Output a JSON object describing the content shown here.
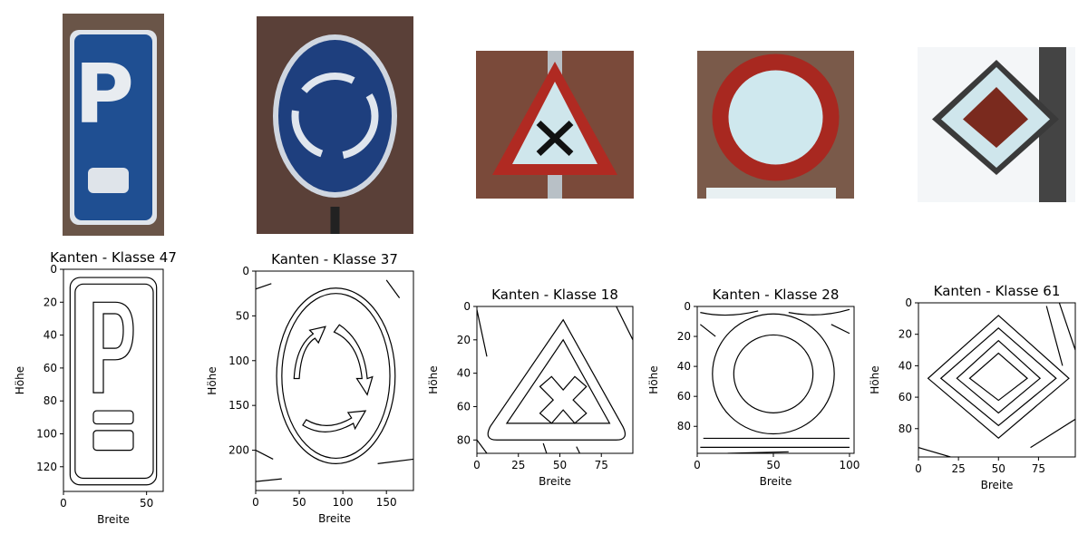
{
  "figure": {
    "background": "#ffffff"
  },
  "chart_data": [
    {
      "type": "image",
      "title": "Kanten - Klasse 47",
      "xlabel": "Breite",
      "ylabel": "Höhe",
      "width": 60,
      "height": 135,
      "xticks": [
        0,
        50
      ],
      "yticks": [
        0,
        20,
        40,
        60,
        80,
        100,
        120
      ],
      "photo": {
        "sign": "parking",
        "bg": "#6a5548",
        "accent": "#1f4f92"
      }
    },
    {
      "type": "image",
      "title": "Kanten - Klasse 37",
      "xlabel": "Breite",
      "ylabel": "Höhe",
      "width": 181,
      "height": 245,
      "xticks": [
        0,
        50,
        100,
        150
      ],
      "yticks": [
        0,
        50,
        100,
        150,
        200
      ],
      "photo": {
        "sign": "roundabout",
        "bg": "#5a4038",
        "accent": "#1e3f7e"
      }
    },
    {
      "type": "image",
      "title": "Kanten - Klasse 18",
      "xlabel": "Breite",
      "ylabel": "Höhe",
      "width": 94,
      "height": 88,
      "xticks": [
        0,
        25,
        50,
        75
      ],
      "yticks": [
        0,
        20,
        40,
        60,
        80
      ],
      "photo": {
        "sign": "crossroads",
        "bg": "#7a4a3a",
        "accent": "#b02a22"
      }
    },
    {
      "type": "image",
      "title": "Kanten - Klasse 28",
      "xlabel": "Breite",
      "ylabel": "Höhe",
      "width": 103,
      "height": 98,
      "xticks": [
        0,
        50,
        100
      ],
      "yticks": [
        0,
        20,
        40,
        60,
        80
      ],
      "photo": {
        "sign": "no-entry",
        "bg": "#7a5a4a",
        "accent": "#a82820"
      }
    },
    {
      "type": "image",
      "title": "Kanten - Klasse 61",
      "xlabel": "Breite",
      "ylabel": "Höhe",
      "width": 98,
      "height": 98,
      "xticks": [
        0,
        25,
        50,
        75
      ],
      "yticks": [
        0,
        20,
        40,
        60,
        80
      ],
      "photo": {
        "sign": "priority-road",
        "bg": "#f4f6f8",
        "accent": "#7a2a1e"
      }
    }
  ]
}
